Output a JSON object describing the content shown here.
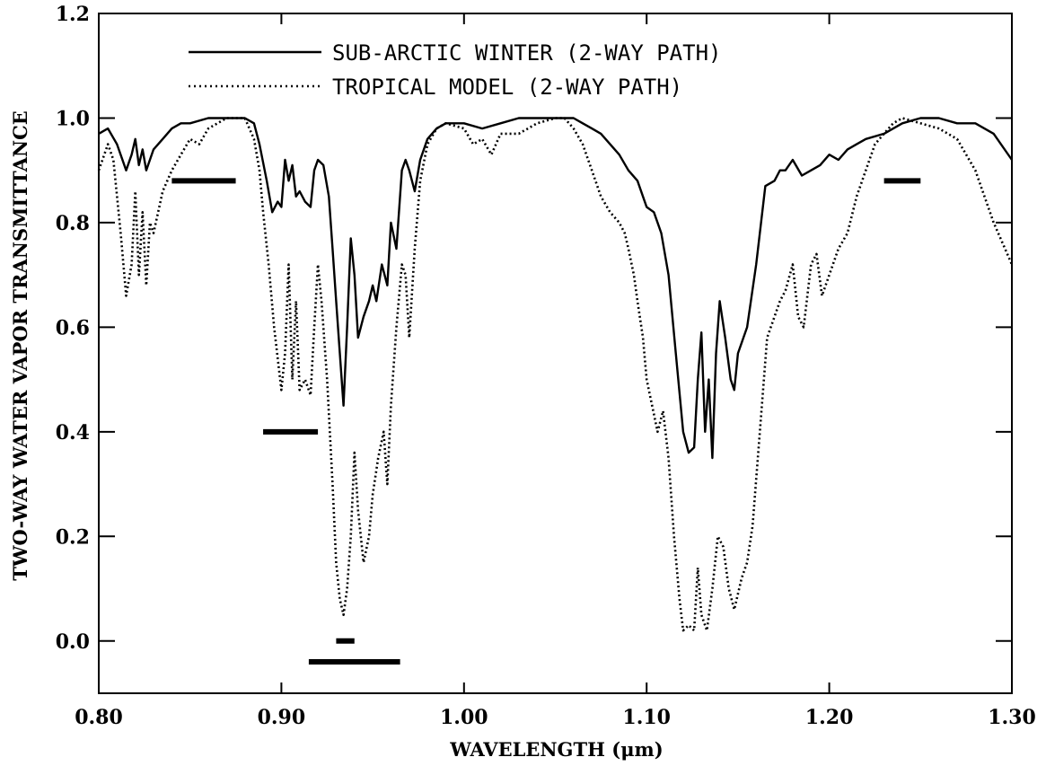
{
  "chart_data": {
    "type": "line",
    "title": "",
    "xlabel": "WAVELENGTH (μm)",
    "ylabel": "TWO-WAY WATER VAPOR TRANSMITTANCE",
    "xlim": [
      0.8,
      1.3
    ],
    "ylim": [
      -0.1,
      1.2
    ],
    "x_ticks": [
      0.8,
      0.9,
      1.0,
      1.1,
      1.2,
      1.3
    ],
    "x_tick_labels": [
      "0.80",
      "0.90",
      "1.00",
      "1.10",
      "1.20",
      "1.30"
    ],
    "y_ticks": [
      0.0,
      0.2,
      0.4,
      0.6,
      0.8,
      1.0,
      1.2
    ],
    "y_tick_labels": [
      "0.0",
      "0.2",
      "0.4",
      "0.6",
      "0.8",
      "1.0",
      "1.2"
    ],
    "grid": false,
    "legend_position": "top-center",
    "series": [
      {
        "name": "SUB-ARCTIC WINTER (2-WAY PATH)",
        "style": "solid",
        "x": [
          0.8,
          0.805,
          0.81,
          0.815,
          0.818,
          0.82,
          0.822,
          0.824,
          0.826,
          0.83,
          0.835,
          0.84,
          0.845,
          0.85,
          0.86,
          0.87,
          0.88,
          0.885,
          0.888,
          0.892,
          0.895,
          0.898,
          0.9,
          0.902,
          0.904,
          0.906,
          0.908,
          0.91,
          0.913,
          0.916,
          0.918,
          0.92,
          0.923,
          0.926,
          0.928,
          0.93,
          0.932,
          0.934,
          0.936,
          0.938,
          0.94,
          0.942,
          0.945,
          0.948,
          0.95,
          0.952,
          0.955,
          0.958,
          0.96,
          0.963,
          0.966,
          0.968,
          0.97,
          0.973,
          0.976,
          0.98,
          0.985,
          0.99,
          1.0,
          1.01,
          1.02,
          1.03,
          1.05,
          1.06,
          1.065,
          1.07,
          1.075,
          1.08,
          1.085,
          1.09,
          1.095,
          1.098,
          1.1,
          1.104,
          1.108,
          1.112,
          1.116,
          1.12,
          1.123,
          1.126,
          1.128,
          1.13,
          1.132,
          1.134,
          1.136,
          1.138,
          1.14,
          1.143,
          1.146,
          1.148,
          1.15,
          1.155,
          1.16,
          1.165,
          1.17,
          1.173,
          1.176,
          1.18,
          1.185,
          1.19,
          1.195,
          1.2,
          1.205,
          1.21,
          1.215,
          1.22,
          1.23,
          1.24,
          1.25,
          1.26,
          1.27,
          1.28,
          1.29,
          1.3
        ],
        "y": [
          0.97,
          0.98,
          0.95,
          0.9,
          0.93,
          0.96,
          0.91,
          0.94,
          0.9,
          0.94,
          0.96,
          0.98,
          0.99,
          0.99,
          1.0,
          1.0,
          1.0,
          0.99,
          0.95,
          0.88,
          0.82,
          0.84,
          0.83,
          0.92,
          0.88,
          0.91,
          0.85,
          0.86,
          0.84,
          0.83,
          0.9,
          0.92,
          0.91,
          0.85,
          0.75,
          0.65,
          0.55,
          0.45,
          0.6,
          0.77,
          0.7,
          0.58,
          0.62,
          0.65,
          0.68,
          0.65,
          0.72,
          0.68,
          0.8,
          0.75,
          0.9,
          0.92,
          0.9,
          0.86,
          0.92,
          0.96,
          0.98,
          0.99,
          0.99,
          0.98,
          0.99,
          1.0,
          1.0,
          1.0,
          0.99,
          0.98,
          0.97,
          0.95,
          0.93,
          0.9,
          0.88,
          0.85,
          0.83,
          0.82,
          0.78,
          0.7,
          0.55,
          0.4,
          0.36,
          0.37,
          0.5,
          0.59,
          0.4,
          0.5,
          0.35,
          0.55,
          0.65,
          0.58,
          0.5,
          0.48,
          0.55,
          0.6,
          0.72,
          0.87,
          0.88,
          0.9,
          0.9,
          0.92,
          0.89,
          0.9,
          0.91,
          0.93,
          0.92,
          0.94,
          0.95,
          0.96,
          0.97,
          0.99,
          1.0,
          1.0,
          0.99,
          0.99,
          0.97,
          0.92
        ]
      },
      {
        "name": "TROPICAL MODEL (2-WAY PATH)",
        "style": "dotted",
        "x": [
          0.8,
          0.805,
          0.808,
          0.812,
          0.815,
          0.818,
          0.82,
          0.822,
          0.824,
          0.826,
          0.828,
          0.83,
          0.835,
          0.84,
          0.845,
          0.85,
          0.855,
          0.86,
          0.87,
          0.88,
          0.885,
          0.888,
          0.89,
          0.893,
          0.896,
          0.9,
          0.902,
          0.904,
          0.906,
          0.908,
          0.91,
          0.913,
          0.916,
          0.918,
          0.92,
          0.922,
          0.925,
          0.928,
          0.93,
          0.932,
          0.934,
          0.936,
          0.938,
          0.94,
          0.942,
          0.945,
          0.948,
          0.95,
          0.953,
          0.956,
          0.958,
          0.96,
          0.963,
          0.966,
          0.968,
          0.97,
          0.973,
          0.976,
          0.98,
          0.985,
          0.99,
          1.0,
          1.005,
          1.01,
          1.015,
          1.02,
          1.03,
          1.04,
          1.05,
          1.055,
          1.06,
          1.065,
          1.07,
          1.075,
          1.08,
          1.085,
          1.088,
          1.09,
          1.093,
          1.095,
          1.098,
          1.1,
          1.103,
          1.106,
          1.109,
          1.112,
          1.115,
          1.118,
          1.12,
          1.123,
          1.126,
          1.128,
          1.13,
          1.133,
          1.136,
          1.139,
          1.142,
          1.145,
          1.148,
          1.152,
          1.155,
          1.158,
          1.162,
          1.166,
          1.17,
          1.173,
          1.176,
          1.18,
          1.183,
          1.186,
          1.19,
          1.193,
          1.196,
          1.2,
          1.205,
          1.21,
          1.215,
          1.22,
          1.225,
          1.23,
          1.235,
          1.24,
          1.25,
          1.26,
          1.27,
          1.28,
          1.29,
          1.3
        ],
        "y": [
          0.9,
          0.95,
          0.92,
          0.78,
          0.66,
          0.72,
          0.86,
          0.7,
          0.82,
          0.68,
          0.8,
          0.78,
          0.86,
          0.9,
          0.93,
          0.96,
          0.95,
          0.98,
          1.0,
          1.0,
          0.96,
          0.9,
          0.82,
          0.72,
          0.6,
          0.48,
          0.55,
          0.72,
          0.5,
          0.65,
          0.48,
          0.5,
          0.47,
          0.6,
          0.72,
          0.65,
          0.5,
          0.3,
          0.15,
          0.08,
          0.05,
          0.1,
          0.2,
          0.36,
          0.25,
          0.15,
          0.2,
          0.28,
          0.35,
          0.4,
          0.3,
          0.45,
          0.6,
          0.72,
          0.7,
          0.58,
          0.75,
          0.88,
          0.95,
          0.98,
          0.99,
          0.98,
          0.95,
          0.96,
          0.93,
          0.97,
          0.97,
          0.99,
          1.0,
          1.0,
          0.98,
          0.95,
          0.9,
          0.85,
          0.82,
          0.8,
          0.78,
          0.75,
          0.7,
          0.65,
          0.58,
          0.5,
          0.45,
          0.4,
          0.44,
          0.35,
          0.2,
          0.08,
          0.02,
          0.03,
          0.02,
          0.14,
          0.05,
          0.02,
          0.1,
          0.2,
          0.18,
          0.1,
          0.06,
          0.12,
          0.15,
          0.22,
          0.4,
          0.58,
          0.62,
          0.65,
          0.67,
          0.72,
          0.62,
          0.6,
          0.72,
          0.74,
          0.66,
          0.7,
          0.75,
          0.78,
          0.85,
          0.9,
          0.95,
          0.97,
          0.99,
          1.0,
          0.99,
          0.98,
          0.96,
          0.9,
          0.8,
          0.72
        ]
      }
    ],
    "annotations": [
      {
        "kind": "bar",
        "x_start": 0.84,
        "x_end": 0.875,
        "y": 0.88
      },
      {
        "kind": "bar",
        "x_start": 0.89,
        "x_end": 0.92,
        "y": 0.4
      },
      {
        "kind": "bar",
        "x_start": 0.93,
        "x_end": 0.94,
        "y": 0.0
      },
      {
        "kind": "bar",
        "x_start": 0.915,
        "x_end": 0.965,
        "y": -0.04
      },
      {
        "kind": "bar",
        "x_start": 1.23,
        "x_end": 1.25,
        "y": 0.88
      }
    ]
  }
}
